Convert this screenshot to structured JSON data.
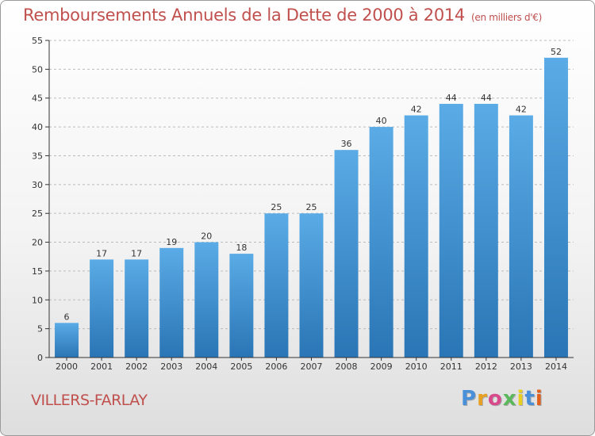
{
  "title": "Remboursements Annuels de la Dette de 2000 à 2014",
  "subtitle": "(en milliers d'€)",
  "commune": "VILLERS-FARLAY",
  "logo": {
    "letters": [
      "P",
      "r",
      "o",
      "x",
      "i",
      "t",
      "i"
    ],
    "colors": [
      "#4a90d9",
      "#e8a020",
      "#d94a8c",
      "#5cb85c",
      "#e8d020",
      "#4a90d9",
      "#e06020"
    ]
  },
  "colors": {
    "bar_top": "#5aabe6",
    "bar_bottom": "#2a75b5",
    "title": "#c0504d",
    "axis": "#333333",
    "grid": "#bbbbbb"
  },
  "chart_data": {
    "type": "bar",
    "categories": [
      "2000",
      "2001",
      "2002",
      "2003",
      "2004",
      "2005",
      "2006",
      "2007",
      "2008",
      "2009",
      "2010",
      "2011",
      "2012",
      "2013",
      "2014"
    ],
    "values": [
      6,
      17,
      17,
      19,
      20,
      18,
      25,
      25,
      36,
      40,
      42,
      44,
      44,
      42,
      52
    ],
    "yticks": [
      0,
      5,
      10,
      15,
      20,
      25,
      30,
      35,
      40,
      45,
      50,
      55
    ],
    "ylim": [
      0,
      55
    ],
    "grid": true
  }
}
